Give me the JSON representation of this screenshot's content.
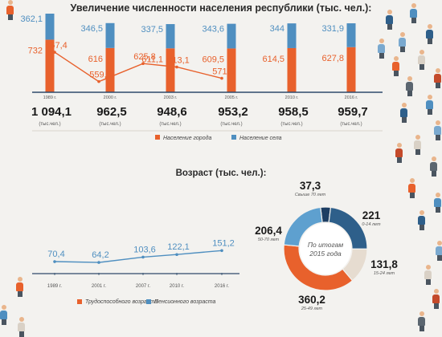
{
  "titles": {
    "population": "Увеличение численности населения республики (тыс. чел.):",
    "age": "Возраст (тыс. чел.):"
  },
  "colors": {
    "urban": "#e8612c",
    "rural": "#4f8fc0",
    "working": "#e8612c",
    "pension": "#4f8fc0",
    "total_text": "#1a1a1a",
    "axis": "#2e4a6b"
  },
  "chart_data": [
    {
      "type": "bar",
      "stacked": true,
      "title": "Увеличение численности населения республики (тыс. чел.):",
      "categories": [
        "1989 г.",
        "2000 г.",
        "2003 г.",
        "2005 г.",
        "2010 г.",
        "2016 г."
      ],
      "series": [
        {
          "name": "Население города",
          "values": [
            732,
            616,
            611.1,
            609.5,
            614.5,
            627.8
          ]
        },
        {
          "name": "Население села",
          "values": [
            362.1,
            346.5,
            337.5,
            343.6,
            344,
            331.9
          ]
        }
      ],
      "value_labels": {
        "urban": [
          "732",
          "616",
          "611,1",
          "609,5",
          "614,5",
          "627,8"
        ],
        "rural": [
          "362,1",
          "346,5",
          "337,5",
          "343,6",
          "344",
          "331,9"
        ]
      },
      "totals": [
        "1 094,1",
        "962,5",
        "948,6",
        "953,2",
        "958,5",
        "959,7"
      ],
      "total_unit": "(тыс.чел.)",
      "legend_position": "bottom"
    },
    {
      "type": "line",
      "categories": [
        "1989 г.",
        "2001 г.",
        "2007 г.",
        "2010 г.",
        "2016 г."
      ],
      "series": [
        {
          "name": "Трудоспособного возраста",
          "values": [
            667.4,
            559.8,
            625.8,
            613.1,
            571.8
          ],
          "labels": [
            "667,4",
            "559,8",
            "625,8",
            "613,1",
            "571,8"
          ]
        },
        {
          "name": "Пенсионного возраста",
          "values": [
            70.4,
            64.2,
            103.6,
            122.1,
            151.2
          ],
          "labels": [
            "70,4",
            "64,2",
            "103,6",
            "122,1",
            "151,2"
          ]
        }
      ],
      "legend_position": "bottom"
    },
    {
      "type": "pie",
      "donut": true,
      "center_text": "По итогам 2015 года",
      "slices": [
        {
          "value": 37.3,
          "label": "37,3",
          "caption": "Свыше 70 лет",
          "color": "#1d3e63"
        },
        {
          "value": 221,
          "label": "221",
          "caption": "0-14 лет",
          "color": "#2e5f8a"
        },
        {
          "value": 131.8,
          "label": "131,8",
          "caption": "15-24 лет",
          "color": "#e6dcd0"
        },
        {
          "value": 360.2,
          "label": "360,2",
          "caption": "25-49 лет",
          "color": "#e8612c"
        },
        {
          "value": 206.4,
          "label": "206,4",
          "caption": "50-70 лет",
          "color": "#5ea0cf"
        }
      ]
    }
  ]
}
